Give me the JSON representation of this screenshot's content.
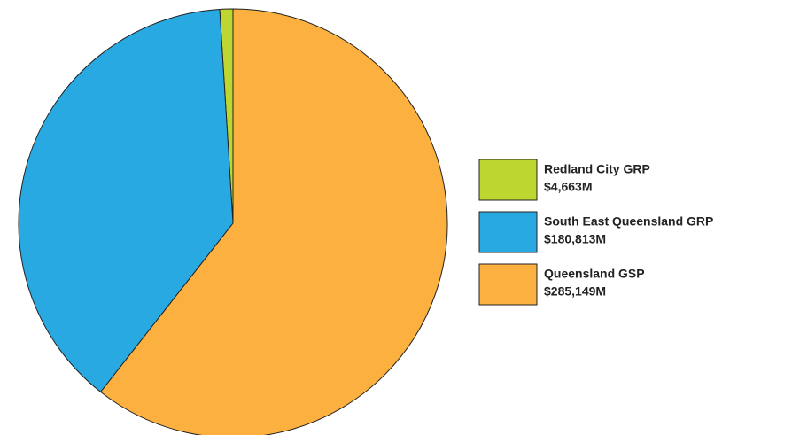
{
  "chart_data": {
    "type": "pie",
    "categories": [
      "Redland City GRP",
      "South East Queensland GRP",
      "Queensland GSP"
    ],
    "values": [
      4663,
      180813,
      285149
    ],
    "value_labels": [
      "$4,663M",
      "$180,813M",
      "$285,149M"
    ],
    "colors": [
      "#bed630",
      "#29a9e1",
      "#fbb040"
    ],
    "start": "top",
    "direction": "counterclockwise",
    "legend": "right"
  }
}
